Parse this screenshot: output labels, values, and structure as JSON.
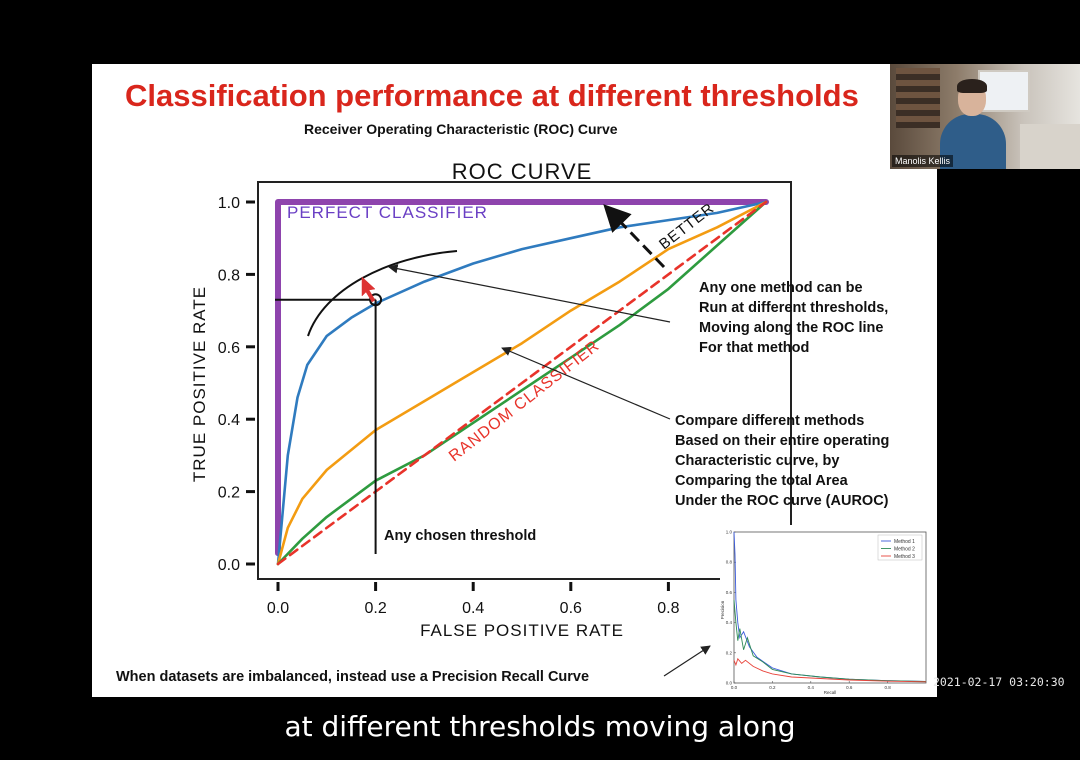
{
  "slide": {
    "title": "Classification performance at different thresholds",
    "subtitle": "Receiver Operating Characteristic (ROC) Curve",
    "annotations": {
      "one_method": [
        "Any one method can be",
        "Run at different thresholds,",
        "Moving along the ROC line",
        "For that method"
      ],
      "compare_methods": [
        "Compare different methods",
        "Based on their entire operating",
        "Characteristic curve, by",
        "Comparing the total Area",
        "Under the ROC curve (AUROC)"
      ],
      "chosen_threshold": "Any chosen threshold",
      "imbalanced": "When datasets are imbalanced, instead use a Precision Recall Curve"
    }
  },
  "chart_data": [
    {
      "type": "line",
      "title": "ROC CURVE",
      "xlabel": "FALSE POSITIVE RATE",
      "ylabel": "TRUE POSITIVE RATE",
      "xlim": [
        0.0,
        1.0
      ],
      "ylim": [
        0.0,
        1.0
      ],
      "xticks": [
        "0.0",
        "0.2",
        "0.4",
        "0.6",
        "0.8"
      ],
      "yticks": [
        "0.0",
        "0.2",
        "0.4",
        "0.6",
        "0.8",
        "1.0"
      ],
      "grid": false,
      "labels": {
        "perfect": "PERFECT CLASSIFIER",
        "random": "RANDOM CLASSIFIER",
        "better": "BETTER"
      },
      "series": [
        {
          "color": "#8e44ad",
          "x": [
            0.0,
            0.0,
            1.0
          ],
          "y": [
            0.03,
            1.0,
            1.0
          ]
        },
        {
          "color": "#2f7bbf",
          "x": [
            0.0,
            0.02,
            0.04,
            0.06,
            0.1,
            0.15,
            0.2,
            0.3,
            0.4,
            0.5,
            0.6,
            0.7,
            0.8,
            0.9,
            1.0
          ],
          "y": [
            0.0,
            0.3,
            0.46,
            0.55,
            0.63,
            0.68,
            0.72,
            0.78,
            0.83,
            0.87,
            0.9,
            0.93,
            0.95,
            0.97,
            1.0
          ]
        },
        {
          "color": "#f39c12",
          "x": [
            0.0,
            0.02,
            0.05,
            0.1,
            0.2,
            0.3,
            0.4,
            0.5,
            0.6,
            0.7,
            0.8,
            0.9,
            1.0
          ],
          "y": [
            0.0,
            0.1,
            0.18,
            0.26,
            0.37,
            0.45,
            0.53,
            0.61,
            0.7,
            0.78,
            0.87,
            0.93,
            1.0
          ]
        },
        {
          "color": "#2e9b3f",
          "x": [
            0.0,
            0.05,
            0.1,
            0.2,
            0.3,
            0.4,
            0.5,
            0.6,
            0.7,
            0.8,
            0.9,
            1.0
          ],
          "y": [
            0.0,
            0.07,
            0.13,
            0.23,
            0.3,
            0.39,
            0.48,
            0.57,
            0.66,
            0.76,
            0.88,
            1.0
          ]
        },
        {
          "color": "#e8332a",
          "dashed": true,
          "x": [
            0.0,
            1.0
          ],
          "y": [
            0.0,
            1.0
          ]
        }
      ],
      "threshold_point": {
        "x": 0.2,
        "y": 0.73
      }
    },
    {
      "type": "line",
      "xlabel": "Recall",
      "ylabel": "Precision",
      "xlim": [
        0.0,
        1.0
      ],
      "ylim": [
        0.0,
        1.0
      ],
      "xticks": [
        "0.0",
        "0.2",
        "0.4",
        "0.6",
        "0.8"
      ],
      "yticks": [
        "0.0",
        "0.2",
        "0.4",
        "0.6",
        "0.8",
        "1.0"
      ],
      "legend": "top-right",
      "series": [
        {
          "name": "Method 1",
          "color": "#3b5bdb",
          "x": [
            0.0,
            0.005,
            0.01,
            0.02,
            0.03,
            0.05,
            0.08,
            0.12,
            0.2,
            0.3,
            0.45,
            0.6,
            0.8,
            1.0
          ],
          "y": [
            1.0,
            0.85,
            0.55,
            0.4,
            0.3,
            0.34,
            0.24,
            0.17,
            0.1,
            0.06,
            0.04,
            0.025,
            0.015,
            0.01
          ]
        },
        {
          "name": "Method 2",
          "color": "#2e8b57",
          "x": [
            0.0,
            0.01,
            0.02,
            0.03,
            0.05,
            0.07,
            0.1,
            0.15,
            0.2,
            0.3,
            0.45,
            0.6,
            0.8,
            1.0
          ],
          "y": [
            0.55,
            0.4,
            0.28,
            0.36,
            0.22,
            0.3,
            0.18,
            0.14,
            0.09,
            0.06,
            0.04,
            0.025,
            0.015,
            0.01
          ]
        },
        {
          "name": "Method 3",
          "color": "#e8433a",
          "x": [
            0.0,
            0.01,
            0.02,
            0.04,
            0.06,
            0.1,
            0.15,
            0.2,
            0.3,
            0.45,
            0.6,
            0.8,
            1.0
          ],
          "y": [
            0.15,
            0.12,
            0.16,
            0.13,
            0.15,
            0.11,
            0.08,
            0.06,
            0.04,
            0.03,
            0.02,
            0.012,
            0.008
          ]
        }
      ]
    }
  ],
  "webcam": {
    "name": "Manolis Kellis"
  },
  "timestamp": "2021-02-17 03:20:30",
  "caption": "at different thresholds moving along"
}
